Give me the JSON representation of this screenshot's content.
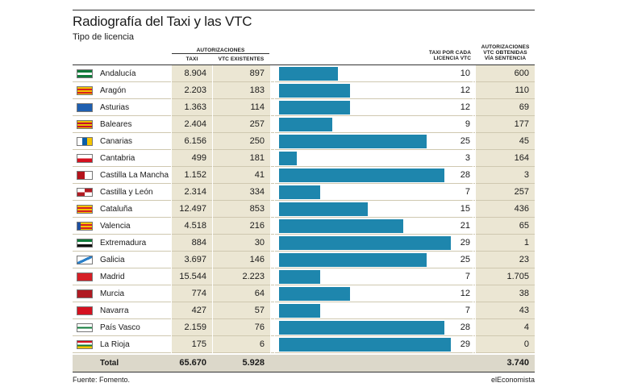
{
  "title": "Radiografía del Taxi y las VTC",
  "subtitle": "Tipo de licencia",
  "headers": {
    "autorizaciones": "AUTORIZACIONES",
    "taxi": "TAXI",
    "vtc": "VTC EXISTENTES",
    "ratio_l1": "TAXI POR CADA",
    "ratio_l2": "LICENCIA VTC",
    "sent_l1": "AUTORIZACIONES",
    "sent_l2": "VTC OBTENIDAS",
    "sent_l3": "VÍA SENTENCIA"
  },
  "colors": {
    "bar": "#1e86ad",
    "beige": "#ebe6d3",
    "total_bg": "#dcd8ca"
  },
  "chart_data": {
    "type": "table",
    "columns": [
      "",
      "TAXI",
      "VTC EXISTENTES",
      "TAXI POR CADA LICENCIA VTC",
      "AUTORIZACIONES VTC OBTENIDAS VÍA SENTENCIA"
    ],
    "ratio_max": 30,
    "rows": [
      {
        "name": "Andalucía",
        "taxi": "8.904",
        "vtc": "897",
        "ratio": 10,
        "sentencia": "600",
        "flag": "andalucia-flag"
      },
      {
        "name": "Aragón",
        "taxi": "2.203",
        "vtc": "183",
        "ratio": 12,
        "sentencia": "110",
        "flag": "aragon-flag"
      },
      {
        "name": "Asturias",
        "taxi": "1.363",
        "vtc": "114",
        "ratio": 12,
        "sentencia": "69",
        "flag": "asturias-flag"
      },
      {
        "name": "Baleares",
        "taxi": "2.404",
        "vtc": "257",
        "ratio": 9,
        "sentencia": "177",
        "flag": "baleares-flag"
      },
      {
        "name": "Canarias",
        "taxi": "6.156",
        "vtc": "250",
        "ratio": 25,
        "sentencia": "45",
        "flag": "canarias-flag"
      },
      {
        "name": "Cantabria",
        "taxi": "499",
        "vtc": "181",
        "ratio": 3,
        "sentencia": "164",
        "flag": "cantabria-flag"
      },
      {
        "name": "Castilla La Mancha",
        "taxi": "1.152",
        "vtc": "41",
        "ratio": 28,
        "sentencia": "3",
        "flag": "castilla-la-mancha-flag"
      },
      {
        "name": "Castilla y León",
        "taxi": "2.314",
        "vtc": "334",
        "ratio": 7,
        "sentencia": "257",
        "flag": "castilla-y-leon-flag"
      },
      {
        "name": "Cataluña",
        "taxi": "12.497",
        "vtc": "853",
        "ratio": 15,
        "sentencia": "436",
        "flag": "cataluna-flag"
      },
      {
        "name": "Valencia",
        "taxi": "4.518",
        "vtc": "216",
        "ratio": 21,
        "sentencia": "65",
        "flag": "valencia-flag"
      },
      {
        "name": "Extremadura",
        "taxi": "884",
        "vtc": "30",
        "ratio": 29,
        "sentencia": "1",
        "flag": "extremadura-flag"
      },
      {
        "name": "Galicia",
        "taxi": "3.697",
        "vtc": "146",
        "ratio": 25,
        "sentencia": "23",
        "flag": "galicia-flag"
      },
      {
        "name": "Madrid",
        "taxi": "15.544",
        "vtc": "2.223",
        "ratio": 7,
        "sentencia": "1.705",
        "flag": "madrid-flag"
      },
      {
        "name": "Murcia",
        "taxi": "774",
        "vtc": "64",
        "ratio": 12,
        "sentencia": "38",
        "flag": "murcia-flag"
      },
      {
        "name": "Navarra",
        "taxi": "427",
        "vtc": "57",
        "ratio": 7,
        "sentencia": "43",
        "flag": "navarra-flag"
      },
      {
        "name": "País Vasco",
        "taxi": "2.159",
        "vtc": "76",
        "ratio": 28,
        "sentencia": "4",
        "flag": "pais-vasco-flag"
      },
      {
        "name": "La Rioja",
        "taxi": "175",
        "vtc": "6",
        "ratio": 29,
        "sentencia": "0",
        "flag": "la-rioja-flag"
      }
    ],
    "total": {
      "label": "Total",
      "taxi": "65.670",
      "vtc": "5.928",
      "sentencia": "3.740"
    }
  },
  "footer": {
    "source": "Fuente: Fomento.",
    "brand": "elEconomista"
  }
}
